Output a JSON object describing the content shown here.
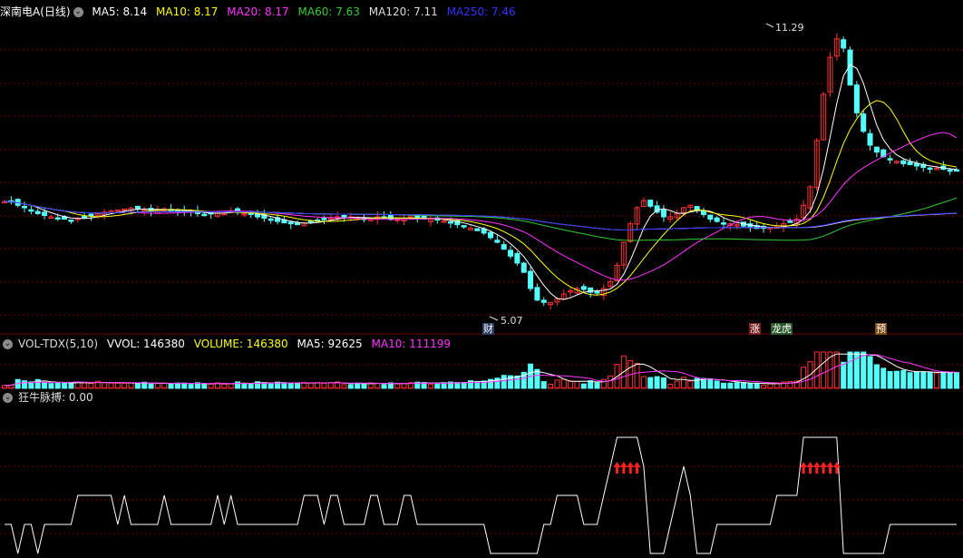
{
  "main": {
    "stock_label": "深南电A(日线)",
    "ma": [
      {
        "label": "MA5: 8.14",
        "color": "#ffffff"
      },
      {
        "label": "MA10: 8.17",
        "color": "#ffff00"
      },
      {
        "label": "MA20: 8.17",
        "color": "#ff33ff"
      },
      {
        "label": "MA60: 7.63",
        "color": "#33cc33"
      },
      {
        "label": "MA120: 7.11",
        "color": "#dcdcdc"
      },
      {
        "label": "MA250: 7.46",
        "color": "#3333ff"
      }
    ],
    "high_label": "11.29",
    "low_label": "5.07",
    "tags": {
      "cai": "财",
      "zhang": "涨",
      "longhu": "龙虎",
      "yu": "预"
    }
  },
  "vol": {
    "name": "VOL-TDX(5,10)",
    "items": [
      {
        "label": "VVOL: 146380",
        "color": "#ffffff"
      },
      {
        "label": "VOLUME: 146380",
        "color": "#ffff00"
      },
      {
        "label": "MA5: 92625",
        "color": "#ffffff"
      },
      {
        "label": "MA10: 111199",
        "color": "#ff33ff"
      }
    ]
  },
  "ind": {
    "name": "狂牛脉搏",
    "value": ": 0.00"
  },
  "colors": {
    "up": "#ff3232",
    "down": "#54ffff",
    "grid": "#7a0000",
    "sep": "#7a0000"
  },
  "chart_data": {
    "type": "candlestick",
    "price_ylim": [
      5.07,
      11.29
    ],
    "close": [
      7.48,
      7.48,
      7.4,
      7.35,
      7.3,
      7.22,
      7.18,
      7.15,
      7.12,
      7.1,
      7.08,
      7.12,
      7.15,
      7.18,
      7.22,
      7.25,
      7.28,
      7.3,
      7.32,
      7.34,
      7.33,
      7.3,
      7.28,
      7.3,
      7.32,
      7.3,
      7.28,
      7.26,
      7.25,
      7.22,
      7.2,
      7.22,
      7.25,
      7.26,
      7.28,
      7.25,
      7.22,
      7.2,
      7.15,
      7.12,
      7.1,
      7.05,
      7.02,
      7.0,
      6.98,
      7.02,
      7.05,
      7.08,
      7.1,
      7.12,
      7.15,
      7.16,
      7.15,
      7.12,
      7.1,
      7.12,
      7.15,
      7.14,
      7.1,
      7.1,
      7.12,
      7.15,
      7.12,
      7.1,
      7.1,
      7.08,
      7.06,
      7.02,
      6.98,
      6.95,
      6.9,
      6.85,
      6.8,
      6.7,
      6.6,
      6.45,
      6.3,
      6.15,
      5.95,
      5.6,
      5.35,
      5.3,
      5.3,
      5.38,
      5.48,
      5.55,
      5.6,
      5.58,
      5.52,
      5.5,
      5.6,
      5.75,
      6.1,
      6.6,
      7.0,
      7.35,
      7.5,
      7.38,
      7.25,
      7.15,
      7.15,
      7.22,
      7.35,
      7.4,
      7.3,
      7.2,
      7.1,
      7.05,
      7.02,
      7.0,
      6.98,
      6.95,
      6.92,
      6.9,
      6.9,
      6.92,
      6.95,
      7.0,
      7.05,
      7.1,
      7.4,
      7.8,
      8.8,
      9.8,
      10.6,
      11.0,
      10.8,
      10.0,
      9.4,
      9.0,
      8.7,
      8.55,
      8.45,
      8.4,
      8.35,
      8.3,
      8.28,
      8.25,
      8.22,
      8.2,
      8.2,
      8.18,
      8.15,
      8.14
    ],
    "volume_max": 146380,
    "indicator_levels": [
      0,
      1,
      2,
      3,
      4
    ]
  }
}
